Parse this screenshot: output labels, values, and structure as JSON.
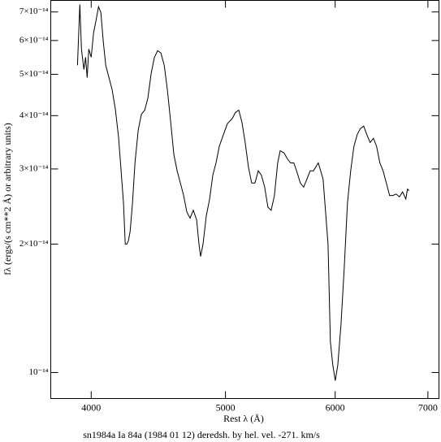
{
  "chart_data": {
    "type": "line",
    "title": "sn1984a Ia 84a (1984 01 12) deredsh. by hel. vel.  -271. km/s",
    "x_label": "Rest λ (Å)",
    "y_label": "fλ (ergs/(s cm**2 Å) or arbitrary units)",
    "xscale": "log",
    "yscale": "log",
    "xlim": [
      3740,
      7130
    ],
    "ylim": [
      8.69e-15,
      7.45e-14
    ],
    "xticks": [
      4000,
      5000,
      6000,
      7000
    ],
    "yticks": [
      {
        "value": 1e-14,
        "label": "10⁻¹⁴"
      },
      {
        "value": 2e-14,
        "label": "2×10⁻¹⁴"
      },
      {
        "value": 3e-14,
        "label": "3×10⁻¹⁴"
      },
      {
        "value": 4e-14,
        "label": "4×10⁻¹⁴"
      },
      {
        "value": 5e-14,
        "label": "5×10⁻¹⁴"
      },
      {
        "value": 6e-14,
        "label": "6×10⁻¹⁴"
      },
      {
        "value": 7e-14,
        "label": "7×10⁻¹⁴"
      }
    ],
    "color": "#000000",
    "x": [
      3910,
      3920,
      3925,
      3936,
      3952,
      3963,
      3973,
      3984,
      4000,
      4016,
      4032,
      4049,
      4065,
      4081,
      4098,
      4120,
      4142,
      4165,
      4187,
      4204,
      4221,
      4233,
      4244,
      4256,
      4267,
      4284,
      4302,
      4325,
      4348,
      4372,
      4395,
      4419,
      4443,
      4467,
      4491,
      4516,
      4540,
      4565,
      4589,
      4614,
      4639,
      4664,
      4689,
      4714,
      4740,
      4766,
      4785,
      4798,
      4817,
      4843,
      4870,
      4896,
      4922,
      4949,
      4983,
      5016,
      5057,
      5084,
      5112,
      5139,
      5167,
      5195,
      5223,
      5251,
      5280,
      5308,
      5337,
      5366,
      5395,
      5424,
      5453,
      5476,
      5512,
      5542,
      5572,
      5602,
      5633,
      5663,
      5694,
      5725,
      5756,
      5787,
      5834,
      5881,
      5929,
      5953,
      5977,
      6001,
      6026,
      6058,
      6091,
      6124,
      6157,
      6190,
      6224,
      6257,
      6291,
      6325,
      6359,
      6394,
      6428,
      6463,
      6498,
      6533,
      6568,
      6604,
      6640,
      6676,
      6712,
      6748,
      6766,
      6785
    ],
    "values": [
      5.25e-14,
      6.53e-14,
      7.29e-14,
      5.73e-14,
      5.13e-14,
      5.48e-14,
      4.91e-14,
      5.73e-14,
      5.48e-14,
      6.25e-14,
      6.68e-14,
      7.2e-14,
      6.98e-14,
      5.98e-14,
      5.25e-14,
      4.91e-14,
      4.6e-14,
      4.12e-14,
      3.54e-14,
      2.97e-14,
      2.49e-14,
      2e-14,
      2e-14,
      2.04e-14,
      2.14e-14,
      2.49e-14,
      3.1e-14,
      3.7e-14,
      4.03e-14,
      4.12e-14,
      4.4e-14,
      5.02e-14,
      5.48e-14,
      5.68e-14,
      5.61e-14,
      5.25e-14,
      4.6e-14,
      3.86e-14,
      3.24e-14,
      2.97e-14,
      2.78e-14,
      2.6e-14,
      2.38e-14,
      2.3e-14,
      2.4e-14,
      2.28e-14,
      2e-14,
      1.87e-14,
      2e-14,
      2.33e-14,
      2.55e-14,
      2.9e-14,
      3.1e-14,
      3.39e-14,
      3.61e-14,
      3.83e-14,
      3.94e-14,
      4.07e-14,
      4.12e-14,
      3.86e-14,
      3.46e-14,
      3.03e-14,
      2.78e-14,
      2.78e-14,
      2.97e-14,
      2.9e-14,
      2.72e-14,
      2.44e-14,
      2.4e-14,
      2.6e-14,
      3.1e-14,
      3.31e-14,
      3.27e-14,
      3.17e-14,
      3.1e-14,
      3.1e-14,
      2.94e-14,
      2.78e-14,
      2.72e-14,
      2.84e-14,
      2.97e-14,
      2.97e-14,
      3.1e-14,
      2.84e-14,
      2e-14,
      1.18e-14,
      1.04e-14,
      9.57e-15,
      1.04e-14,
      1.29e-14,
      1.75e-14,
      2.49e-14,
      2.97e-14,
      3.39e-14,
      3.61e-14,
      3.73e-14,
      3.78e-14,
      3.61e-14,
      3.46e-14,
      3.54e-14,
      3.39e-14,
      3.1e-14,
      2.97e-14,
      2.78e-14,
      2.6e-14,
      2.6e-14,
      2.62e-14,
      2.58e-14,
      2.65e-14,
      2.55e-14,
      2.69e-14,
      2.67e-14
    ]
  }
}
